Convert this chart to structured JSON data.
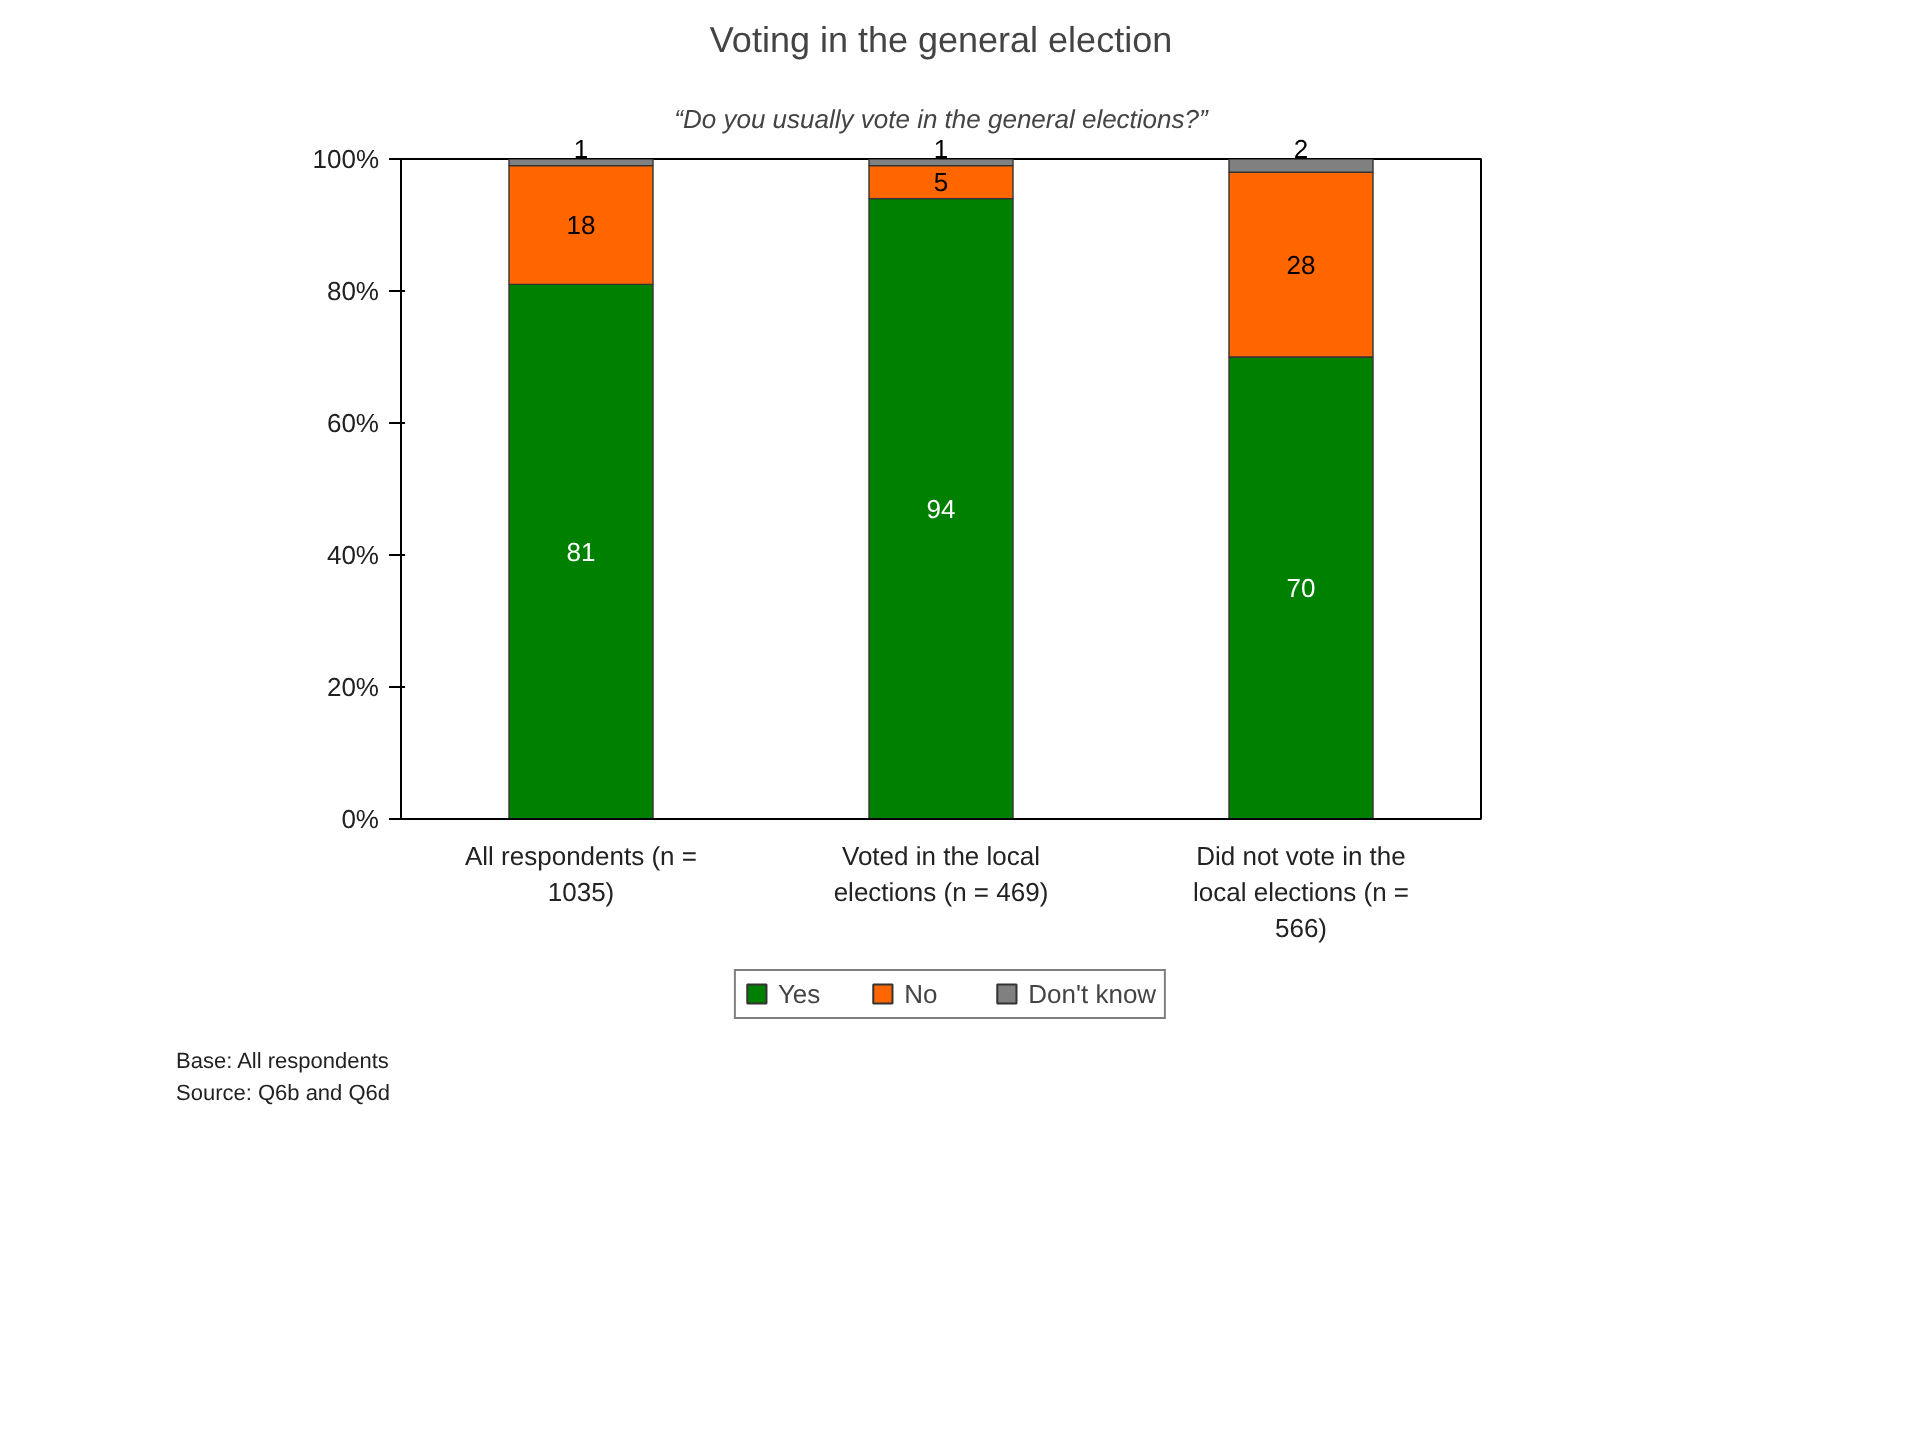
{
  "chart_data": {
    "type": "bar",
    "stacked": true,
    "title": "Voting in the general election",
    "subtitle": "“Do you usually vote in the general elections?”",
    "categories": [
      "All respondents (n = 1035)",
      "Voted in the local elections (n = 469)",
      "Did not vote in the local elections (n = 566)"
    ],
    "series": [
      {
        "name": "Yes",
        "color": "#008000",
        "values": [
          81,
          94,
          70
        ]
      },
      {
        "name": "No",
        "color": "#ff6600",
        "values": [
          18,
          5,
          28
        ]
      },
      {
        "name": "Don't know",
        "color": "#808080",
        "values": [
          1,
          1,
          2
        ]
      }
    ],
    "ylim": [
      0,
      100
    ],
    "yticks": [
      {
        "value": 0,
        "label": "0%"
      },
      {
        "value": 20,
        "label": "20%"
      },
      {
        "value": 40,
        "label": "40%"
      },
      {
        "value": 60,
        "label": "60%"
      },
      {
        "value": 80,
        "label": "80%"
      },
      {
        "value": 100,
        "label": "100%"
      }
    ],
    "data_labels": true,
    "grid": false,
    "legend": "bottom",
    "annotations": [
      "Base: All respondents",
      "Source: Q6b and Q6d"
    ]
  }
}
